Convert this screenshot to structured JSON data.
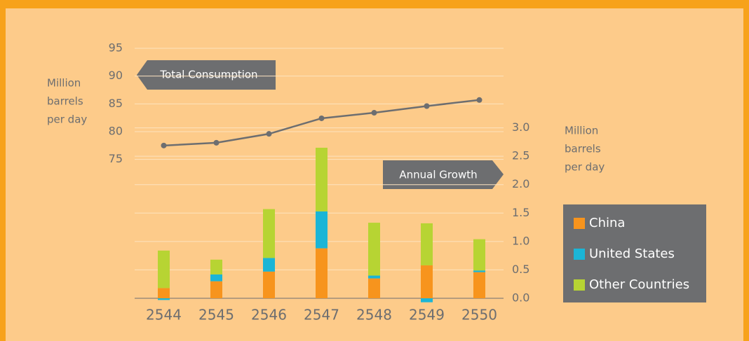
{
  "chart_data": {
    "type": "bar",
    "annotations": [
      "Total Consumption",
      "Annual Growth"
    ],
    "ylabel": [
      "Million",
      "barrels",
      "per day"
    ],
    "y2label": [
      "Million",
      "barrels",
      "per day"
    ],
    "categories": [
      "2544",
      "2545",
      "2546",
      "2547",
      "2548",
      "2549",
      "2550"
    ],
    "series": [
      {
        "name": "Total Consumption",
        "type": "line",
        "axis": "y",
        "color": "#6d6e70",
        "values": [
          77.5,
          78,
          79.6,
          82.4,
          83.4,
          84.6,
          85.7
        ]
      },
      {
        "name": "China",
        "type": "bar",
        "axis": "y2",
        "color": "#f7941d",
        "values": [
          0.18,
          0.3,
          0.47,
          0.88,
          0.35,
          0.58,
          0.46
        ]
      },
      {
        "name": "United States",
        "type": "bar",
        "axis": "y2",
        "color": "#1bb5d6",
        "values": [
          -0.03,
          0.12,
          0.24,
          0.65,
          0.05,
          -0.07,
          0.03
        ]
      },
      {
        "name": "Other Countries",
        "type": "bar",
        "axis": "y2",
        "color": "#b7d433",
        "values": [
          0.66,
          0.26,
          0.86,
          1.12,
          0.93,
          0.74,
          0.55
        ]
      }
    ],
    "ylim": [
      50,
      95
    ],
    "yticks": [
      75,
      80,
      85,
      90,
      95
    ],
    "y2lim": [
      0,
      4.4
    ],
    "y2ticks": [
      {
        "value": 0,
        "label": "0.0"
      },
      0.5,
      {
        "value": 1,
        "label": "1.0"
      },
      1.5,
      {
        "value": 2,
        "label": "2.0"
      },
      2.5,
      {
        "value": 3,
        "label": "3.0"
      }
    ],
    "grid": true,
    "legend": "right"
  }
}
